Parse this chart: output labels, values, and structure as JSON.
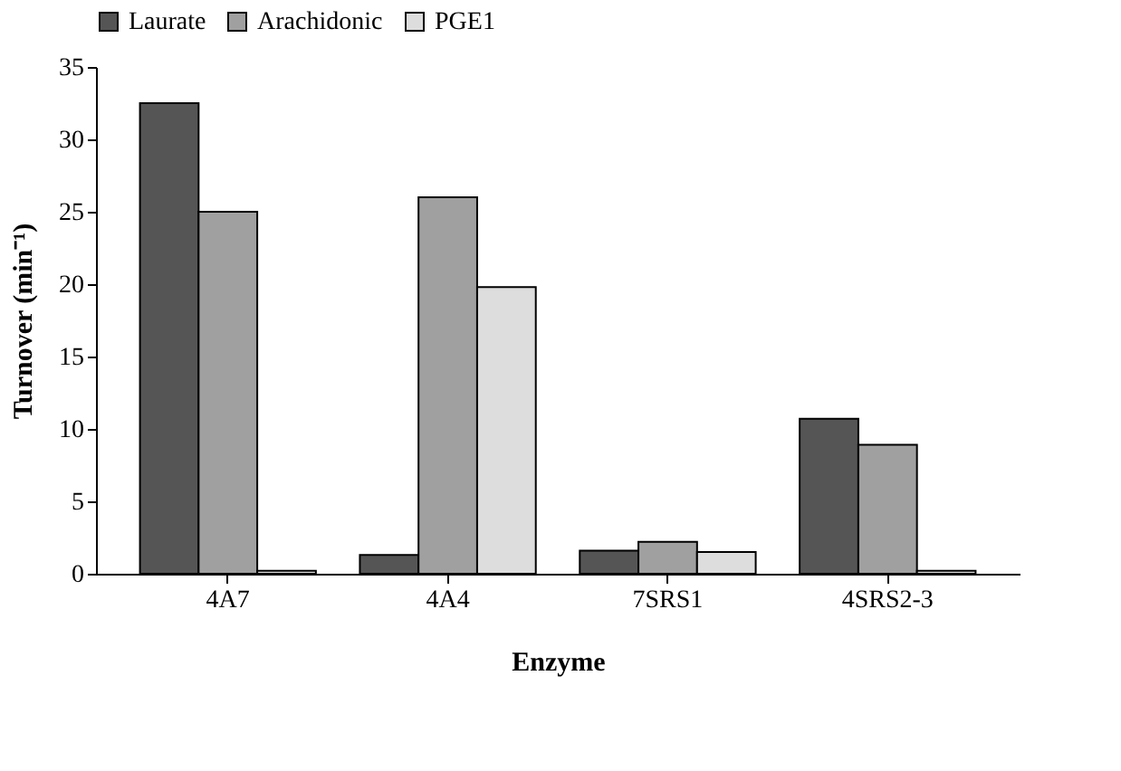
{
  "chart_data": {
    "type": "bar",
    "xlabel": "Enzyme",
    "ylabel": "Turnover (min⁻¹)",
    "categories": [
      "4A7",
      "4A4",
      "7SRS1",
      "4SRS2-3"
    ],
    "series": [
      {
        "name": "Laurate",
        "color": "#555555",
        "values": [
          32.5,
          1.3,
          1.6,
          10.7
        ]
      },
      {
        "name": "Arachidonic",
        "color": "#a0a0a0",
        "values": [
          25,
          26,
          2.2,
          8.9
        ]
      },
      {
        "name": "PGE1",
        "color": "#dddddd",
        "values": [
          0.2,
          19.8,
          1.5,
          0.2
        ]
      }
    ],
    "ylim": [
      0,
      35
    ],
    "yticks": [
      0,
      5,
      10,
      15,
      20,
      25,
      30,
      35
    ],
    "grid": false,
    "legend": "top"
  }
}
